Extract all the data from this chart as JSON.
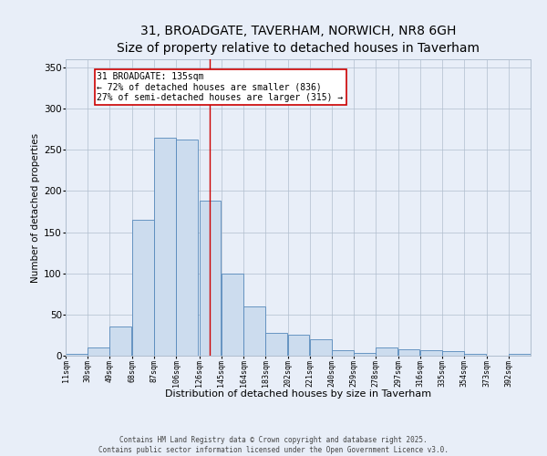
{
  "title_line1": "31, BROADGATE, TAVERHAM, NORWICH, NR8 6GH",
  "title_line2": "Size of property relative to detached houses in Taverham",
  "xlabel": "Distribution of detached houses by size in Taverham",
  "ylabel": "Number of detached properties",
  "bar_color": "#ccdcee",
  "bar_edge_color": "#5588bb",
  "bins": [
    11,
    30,
    49,
    68,
    87,
    106,
    126,
    145,
    164,
    183,
    202,
    221,
    240,
    259,
    278,
    297,
    316,
    335,
    354,
    373,
    392
  ],
  "values": [
    2,
    10,
    35,
    165,
    265,
    263,
    188,
    100,
    60,
    28,
    25,
    20,
    7,
    3,
    10,
    8,
    7,
    5,
    2,
    0,
    2
  ],
  "property_size": 135,
  "vline_color": "#cc0000",
  "annotation_text": "31 BROADGATE: 135sqm\n← 72% of detached houses are smaller (836)\n27% of semi-detached houses are larger (315) →",
  "annotation_box_color": "#ffffff",
  "annotation_border_color": "#cc0000",
  "ylim": [
    0,
    360
  ],
  "yticks": [
    0,
    50,
    100,
    150,
    200,
    250,
    300,
    350
  ],
  "footer_line1": "Contains HM Land Registry data © Crown copyright and database right 2025.",
  "footer_line2": "Contains public sector information licensed under the Open Government Licence v3.0.",
  "bg_color": "#e8eef8",
  "grid_color": "#b0bece",
  "title_fontsize": 10,
  "subtitle_fontsize": 9,
  "annotation_fontsize": 7,
  "footer_fontsize": 5.5,
  "ylabel_fontsize": 7.5,
  "xlabel_fontsize": 8,
  "ytick_fontsize": 7.5,
  "xtick_fontsize": 6
}
